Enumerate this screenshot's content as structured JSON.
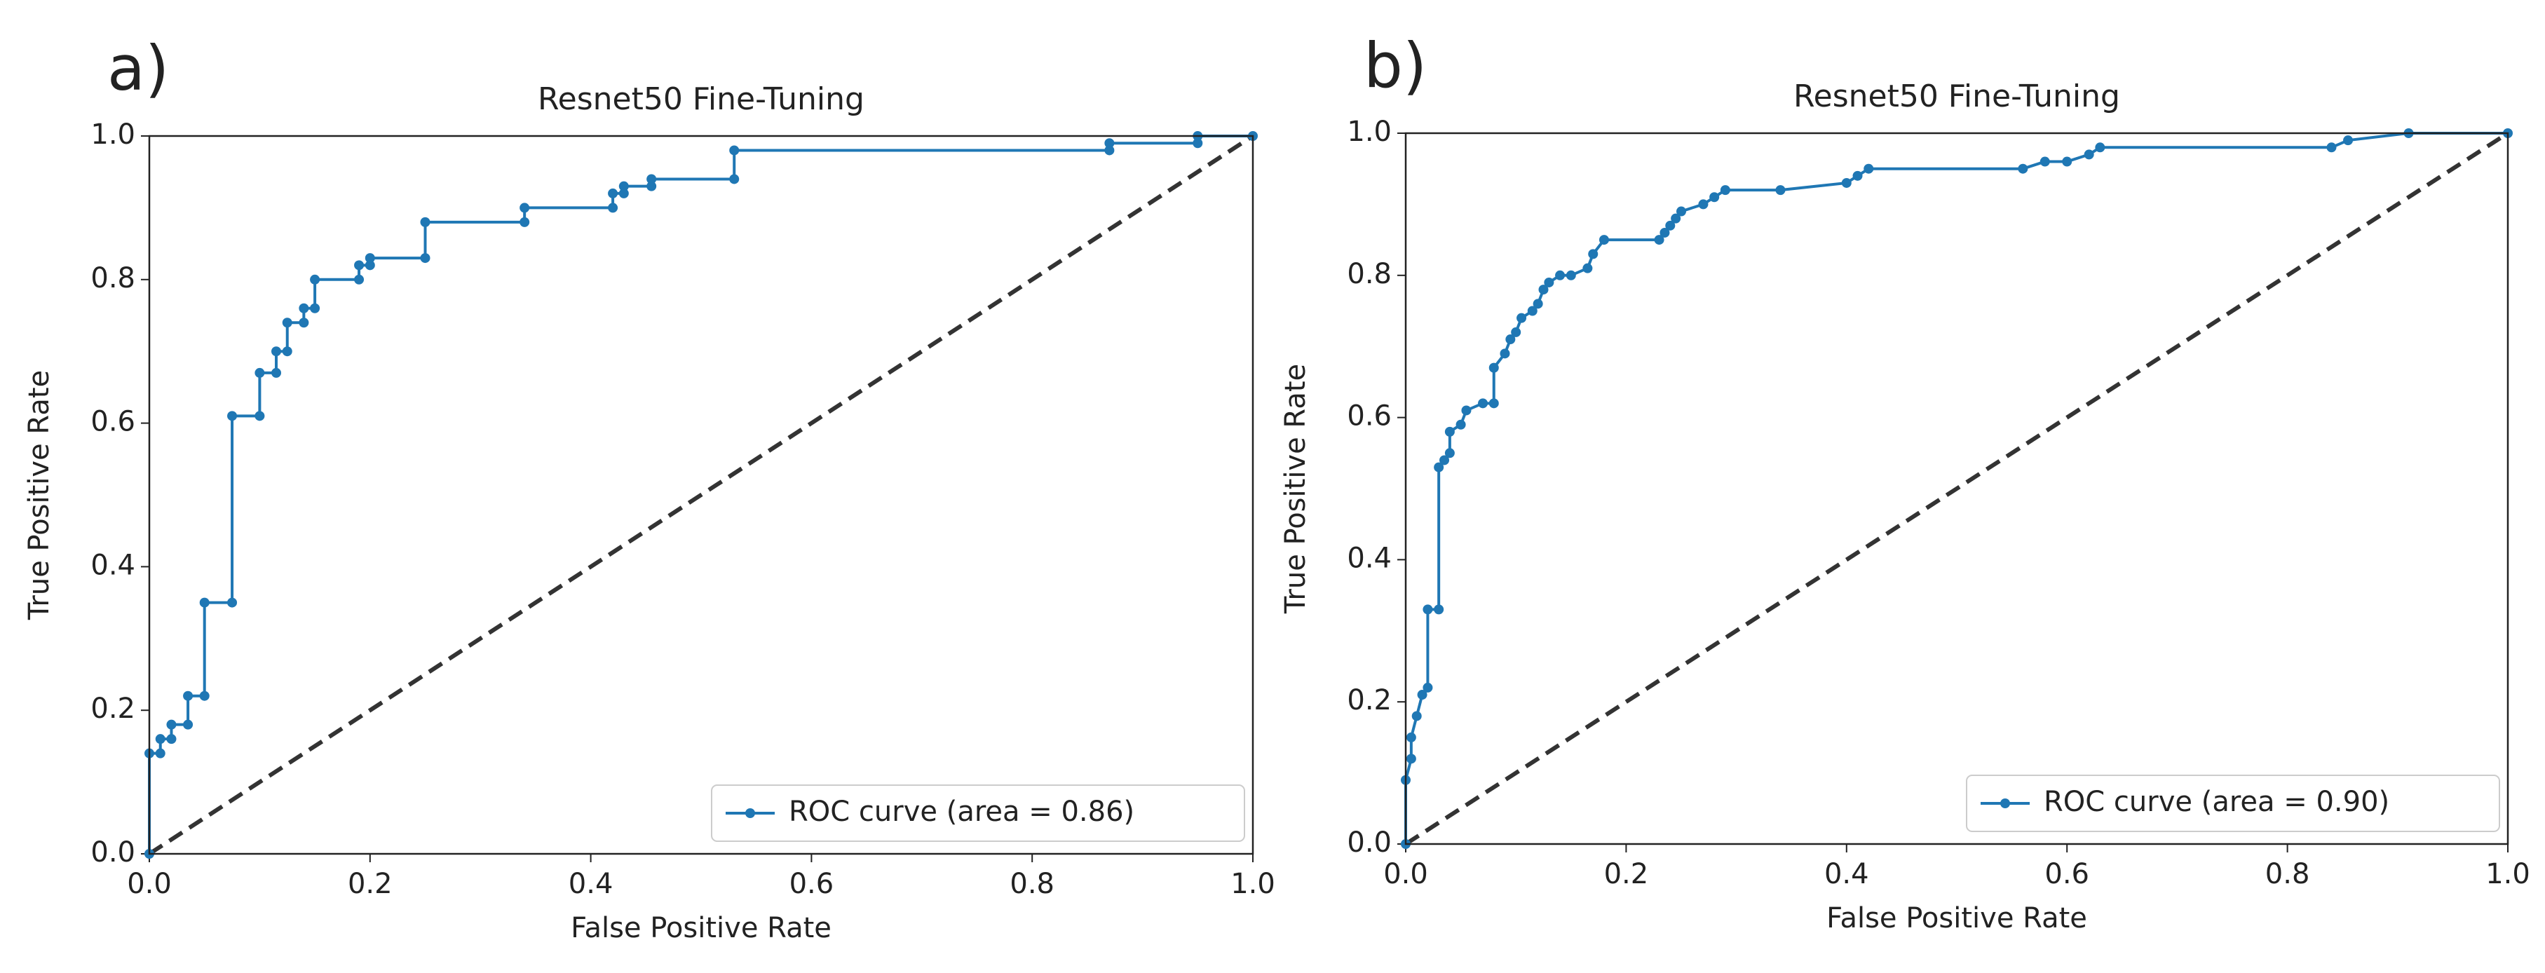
{
  "chart_data": [
    {
      "type": "line",
      "panel_label": "a)",
      "title": "Resnet50 Fine-Tuning",
      "xlabel": "False Positive Rate",
      "ylabel": "True Positive Rate",
      "xlim": [
        0,
        1
      ],
      "ylim": [
        0,
        1
      ],
      "xticks": [
        {
          "value": 0,
          "label": "0.0"
        },
        0.2,
        0.4,
        0.6,
        0.8,
        {
          "value": 1,
          "label": "1.0"
        }
      ],
      "yticks": [
        {
          "value": 0,
          "label": "0.0"
        },
        0.2,
        0.4,
        0.6,
        0.8,
        {
          "value": 1,
          "label": "1.0"
        }
      ],
      "legend": "lower right",
      "series": [
        {
          "name": "ROC curve (area = 0.86)",
          "color": "#1f77b4",
          "x": [
            0,
            0,
            0.01,
            0.01,
            0.02,
            0.02,
            0.035,
            0.035,
            0.05,
            0.05,
            0.075,
            0.075,
            0.1,
            0.1,
            0.115,
            0.115,
            0.125,
            0.125,
            0.14,
            0.14,
            0.15,
            0.15,
            0.19,
            0.19,
            0.2,
            0.2,
            0.25,
            0.25,
            0.34,
            0.34,
            0.42,
            0.42,
            0.43,
            0.43,
            0.455,
            0.455,
            0.53,
            0.53,
            0.87,
            0.87,
            0.95,
            0.95,
            1
          ],
          "values": [
            0,
            0.14,
            0.14,
            0.16,
            0.16,
            0.18,
            0.18,
            0.22,
            0.22,
            0.35,
            0.35,
            0.61,
            0.61,
            0.67,
            0.67,
            0.7,
            0.7,
            0.74,
            0.74,
            0.76,
            0.76,
            0.8,
            0.8,
            0.82,
            0.82,
            0.83,
            0.83,
            0.88,
            0.88,
            0.9,
            0.9,
            0.92,
            0.92,
            0.93,
            0.93,
            0.94,
            0.94,
            0.98,
            0.98,
            0.99,
            0.99,
            1,
            1
          ]
        }
      ]
    },
    {
      "type": "line",
      "panel_label": "b)",
      "title": "Resnet50 Fine-Tuning",
      "xlabel": "False Positive Rate",
      "ylabel": "True Positive Rate",
      "xlim": [
        0,
        1
      ],
      "ylim": [
        0,
        1
      ],
      "xticks": [
        {
          "value": 0,
          "label": "0.0"
        },
        0.2,
        0.4,
        0.6,
        0.8,
        {
          "value": 1,
          "label": "1.0"
        }
      ],
      "yticks": [
        {
          "value": 0,
          "label": "0.0"
        },
        0.2,
        0.4,
        0.6,
        0.8,
        {
          "value": 1,
          "label": "1.0"
        }
      ],
      "legend": "lower right",
      "series": [
        {
          "name": "ROC curve (area = 0.90)",
          "color": "#1f77b4",
          "x": [
            0,
            0,
            0.005,
            0.005,
            0.01,
            0.015,
            0.02,
            0.02,
            0.03,
            0.03,
            0.035,
            0.04,
            0.04,
            0.05,
            0.055,
            0.07,
            0.08,
            0.08,
            0.09,
            0.095,
            0.1,
            0.105,
            0.115,
            0.12,
            0.125,
            0.13,
            0.14,
            0.15,
            0.165,
            0.17,
            0.18,
            0.23,
            0.235,
            0.24,
            0.245,
            0.25,
            0.27,
            0.28,
            0.29,
            0.34,
            0.4,
            0.41,
            0.42,
            0.56,
            0.58,
            0.6,
            0.62,
            0.63,
            0.84,
            0.855,
            0.91,
            1
          ],
          "values": [
            0,
            0.09,
            0.12,
            0.15,
            0.18,
            0.21,
            0.22,
            0.33,
            0.33,
            0.53,
            0.54,
            0.55,
            0.58,
            0.59,
            0.61,
            0.62,
            0.62,
            0.67,
            0.69,
            0.71,
            0.72,
            0.74,
            0.75,
            0.76,
            0.78,
            0.79,
            0.8,
            0.8,
            0.81,
            0.83,
            0.85,
            0.85,
            0.86,
            0.87,
            0.88,
            0.89,
            0.9,
            0.91,
            0.92,
            0.92,
            0.93,
            0.94,
            0.95,
            0.95,
            0.96,
            0.96,
            0.97,
            0.98,
            0.98,
            0.99,
            1,
            1
          ]
        }
      ]
    }
  ]
}
